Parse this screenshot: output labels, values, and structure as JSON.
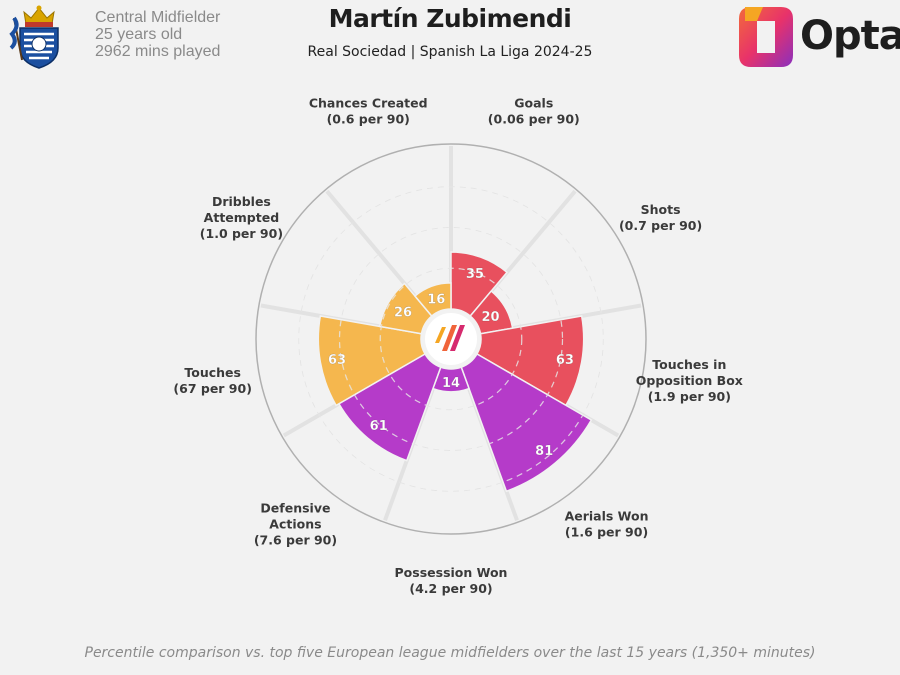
{
  "header": {
    "player_name": "Martín Zubimendi",
    "subtitle": "Real Sociedad | Spanish La Liga 2024-25",
    "position": "Central Midfielder",
    "age": "25 years old",
    "minutes": "2962 mins played",
    "brand": "Opta"
  },
  "footer": {
    "note": "Percentile comparison vs. top five European league midfielders over the last 15 years (1,350+ minutes)"
  },
  "colors": {
    "attacking": "#e8505e",
    "possession": "#f5b74e",
    "defending": "#b53bc9",
    "ring": "#b0b0b0",
    "text": "#3a3a3a"
  },
  "chart_data": {
    "type": "polar-bar",
    "scale": [
      0,
      100
    ],
    "categories": [
      "Goals",
      "Shots",
      "Touches in Opposition Box",
      "Aerials Won",
      "Possession Won",
      "Defensive Actions",
      "Touches",
      "Dribbles Attempted",
      "Chances Created"
    ],
    "per90": [
      "(0.06 per 90)",
      "(0.7 per 90)",
      "(1.9 per 90)",
      "(1.6 per 90)",
      "(4.2 per 90)",
      "(7.6 per 90)",
      "(67 per 90)",
      "(1.0 per 90)",
      "(0.6 per 90)"
    ],
    "values": [
      35,
      20,
      63,
      81,
      14,
      61,
      63,
      26,
      16
    ],
    "groups": [
      "attacking",
      "attacking",
      "attacking",
      "defending",
      "defending",
      "defending",
      "possession",
      "possession",
      "possession"
    ]
  }
}
